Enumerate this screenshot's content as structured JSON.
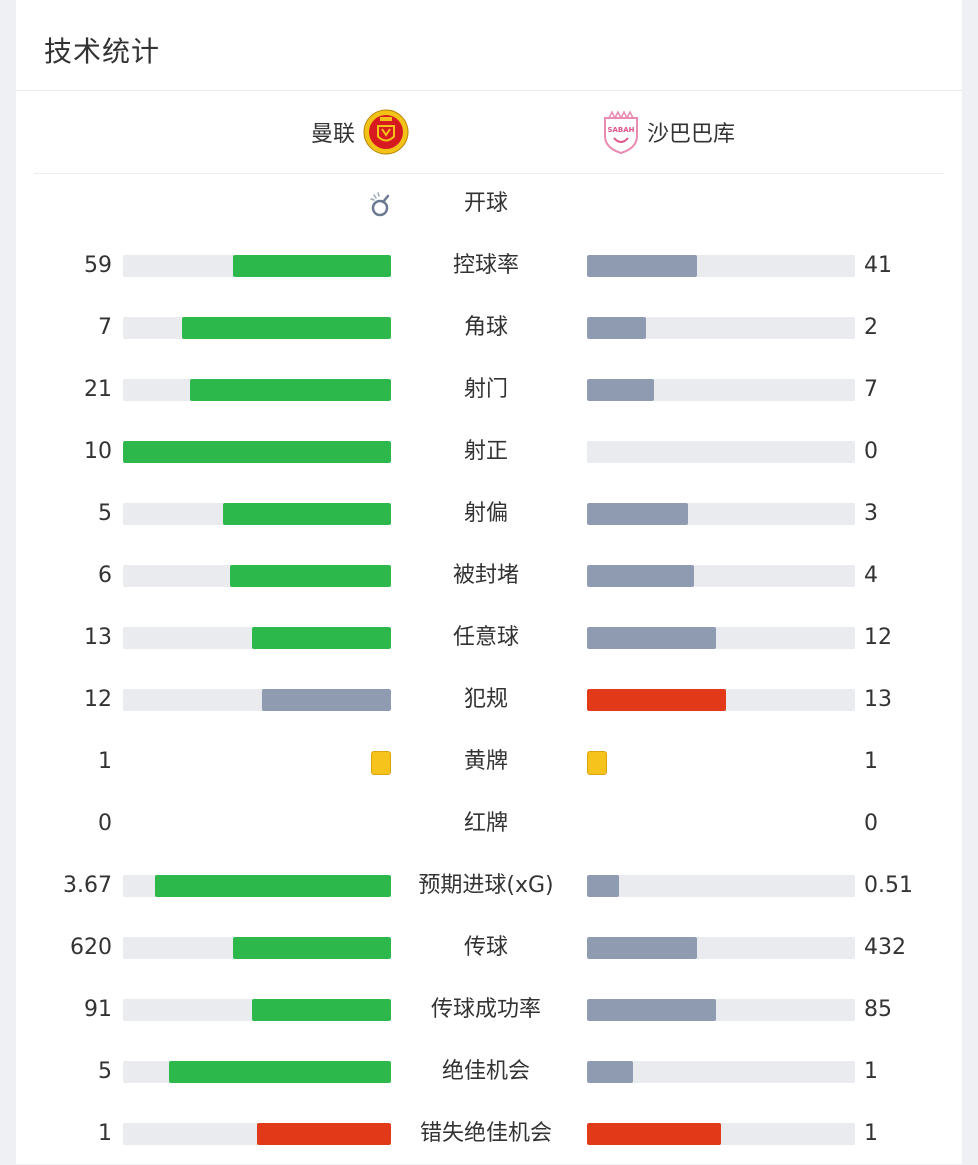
{
  "header": {
    "title": "技术统计"
  },
  "teams": {
    "home": "曼联",
    "away": "沙巴巴库",
    "away_crest_text": "SABAH"
  },
  "colors": {
    "home_lead": "#2db84b",
    "trail": "#8e9bb0",
    "fouls": "#e23a18",
    "card": "#f6c21c",
    "track": "#e9ebee"
  },
  "stats": [
    {
      "label": "开球",
      "home": "",
      "away": "",
      "kind": "kickoff",
      "kickoff_icon": "kickoff-whistle-icon"
    },
    {
      "label": "控球率",
      "home": "59",
      "away": "41",
      "kind": "bar",
      "home_fill": 0.59,
      "away_fill": 0.41,
      "home_color": "#2db84b",
      "away_color": "#8e9bb0"
    },
    {
      "label": "角球",
      "home": "7",
      "away": "2",
      "kind": "bar",
      "home_fill": 0.78,
      "away_fill": 0.22,
      "home_color": "#2db84b",
      "away_color": "#8e9bb0"
    },
    {
      "label": "射门",
      "home": "21",
      "away": "7",
      "kind": "bar",
      "home_fill": 0.75,
      "away_fill": 0.25,
      "home_color": "#2db84b",
      "away_color": "#8e9bb0"
    },
    {
      "label": "射正",
      "home": "10",
      "away": "0",
      "kind": "bar",
      "home_fill": 1.0,
      "away_fill": 0.0,
      "home_color": "#2db84b",
      "away_color": "#8e9bb0"
    },
    {
      "label": "射偏",
      "home": "5",
      "away": "3",
      "kind": "bar",
      "home_fill": 0.625,
      "away_fill": 0.375,
      "home_color": "#2db84b",
      "away_color": "#8e9bb0"
    },
    {
      "label": "被封堵",
      "home": "6",
      "away": "4",
      "kind": "bar",
      "home_fill": 0.6,
      "away_fill": 0.4,
      "home_color": "#2db84b",
      "away_color": "#8e9bb0"
    },
    {
      "label": "任意球",
      "home": "13",
      "away": "12",
      "kind": "bar",
      "home_fill": 0.52,
      "away_fill": 0.48,
      "home_color": "#2db84b",
      "away_color": "#8e9bb0"
    },
    {
      "label": "犯规",
      "home": "12",
      "away": "13",
      "kind": "bar",
      "home_fill": 0.48,
      "away_fill": 0.52,
      "home_color": "#8e9bb0",
      "away_color": "#e23a18"
    },
    {
      "label": "黄牌",
      "home": "1",
      "away": "1",
      "kind": "card",
      "card_color": "#f6c21c"
    },
    {
      "label": "红牌",
      "home": "0",
      "away": "0",
      "kind": "none"
    },
    {
      "label": "预期进球(xG)",
      "home": "3.67",
      "away": "0.51",
      "kind": "bar",
      "home_fill": 0.88,
      "away_fill": 0.12,
      "home_color": "#2db84b",
      "away_color": "#8e9bb0"
    },
    {
      "label": "传球",
      "home": "620",
      "away": "432",
      "kind": "bar",
      "home_fill": 0.59,
      "away_fill": 0.41,
      "home_color": "#2db84b",
      "away_color": "#8e9bb0"
    },
    {
      "label": "传球成功率",
      "home": "91",
      "away": "85",
      "kind": "bar",
      "home_fill": 0.52,
      "away_fill": 0.48,
      "home_color": "#2db84b",
      "away_color": "#8e9bb0"
    },
    {
      "label": "绝佳机会",
      "home": "5",
      "away": "1",
      "kind": "bar",
      "home_fill": 0.83,
      "away_fill": 0.17,
      "home_color": "#2db84b",
      "away_color": "#8e9bb0"
    },
    {
      "label": "错失绝佳机会",
      "home": "1",
      "away": "1",
      "kind": "bar",
      "home_fill": 0.5,
      "away_fill": 0.5,
      "home_color": "#e23a18",
      "away_color": "#e23a18"
    }
  ]
}
